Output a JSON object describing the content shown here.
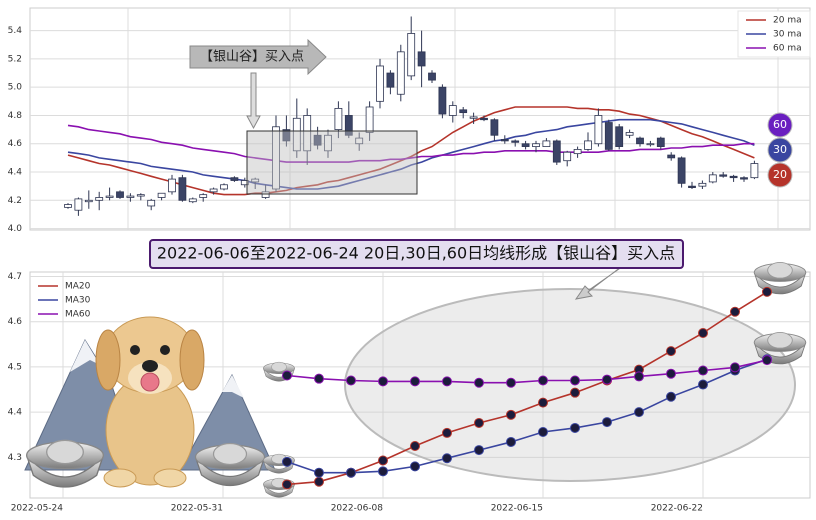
{
  "chart_data": [
    {
      "type": "candlestick",
      "annotation": "【银山谷】买入点",
      "badges": [
        "60",
        "30",
        "20"
      ],
      "ylim": [
        3.99,
        5.56
      ],
      "yticks": [
        {
          "value": 4,
          "label": "4.0"
        },
        4.2,
        4.4,
        4.6,
        4.8,
        {
          "value": 5,
          "label": "5.0"
        },
        5.2,
        5.4
      ],
      "up_color": "#ffffff",
      "down_color": "#3b4466",
      "edge_color": "#2e3552",
      "open": [
        4.15,
        4.13,
        4.19,
        4.2,
        4.22,
        4.26,
        4.22,
        4.23,
        4.16,
        4.22,
        4.26,
        4.36,
        4.19,
        4.22,
        4.26,
        4.28,
        4.36,
        4.31,
        4.33,
        4.22,
        4.28,
        4.7,
        4.55,
        4.55,
        4.66,
        4.55,
        4.7,
        4.8,
        4.6,
        4.68,
        4.9,
        5.1,
        4.95,
        5.08,
        5.25,
        5.1,
        5.0,
        4.8,
        4.84,
        4.78,
        4.78,
        4.77,
        4.63,
        4.62,
        4.6,
        4.58,
        4.58,
        4.62,
        4.48,
        4.53,
        4.56,
        4.6,
        4.75,
        4.72,
        4.66,
        4.64,
        4.6,
        4.64,
        4.52,
        4.5,
        4.3,
        4.3,
        4.33,
        4.38,
        4.37,
        4.36,
        4.36
      ],
      "high": [
        4.18,
        4.22,
        4.27,
        4.26,
        4.29,
        4.27,
        4.25,
        4.25,
        4.21,
        4.25,
        4.38,
        4.38,
        4.22,
        4.25,
        4.29,
        4.32,
        4.37,
        4.36,
        4.36,
        4.31,
        4.8,
        4.8,
        4.92,
        4.85,
        4.72,
        4.7,
        4.9,
        4.9,
        4.68,
        4.9,
        5.2,
        5.12,
        5.3,
        5.5,
        5.4,
        5.12,
        5.02,
        4.9,
        4.86,
        4.82,
        4.8,
        4.78,
        4.66,
        4.63,
        4.62,
        4.62,
        4.64,
        4.63,
        4.55,
        4.58,
        4.68,
        4.85,
        4.77,
        4.74,
        4.7,
        4.65,
        4.62,
        4.65,
        4.54,
        4.51,
        4.33,
        4.34,
        4.4,
        4.4,
        4.38,
        4.37,
        4.48
      ],
      "low": [
        4.14,
        4.09,
        4.14,
        4.13,
        4.2,
        4.21,
        4.19,
        4.2,
        4.13,
        4.2,
        4.24,
        4.19,
        4.18,
        4.19,
        4.24,
        4.27,
        4.33,
        4.29,
        4.28,
        4.21,
        4.26,
        4.58,
        4.5,
        4.45,
        4.56,
        4.5,
        4.64,
        4.64,
        4.55,
        4.62,
        4.85,
        4.95,
        4.9,
        5.05,
        5.0,
        5.03,
        4.78,
        4.75,
        4.78,
        4.74,
        4.76,
        4.62,
        4.6,
        4.58,
        4.56,
        4.54,
        4.58,
        4.45,
        4.44,
        4.5,
        4.55,
        4.58,
        4.55,
        4.56,
        4.64,
        4.58,
        4.58,
        4.56,
        4.48,
        4.29,
        4.28,
        4.28,
        4.32,
        4.36,
        4.33,
        4.33,
        4.35
      ],
      "close": [
        4.17,
        4.21,
        4.2,
        4.22,
        4.23,
        4.22,
        4.23,
        4.24,
        4.2,
        4.25,
        4.35,
        4.2,
        4.21,
        4.24,
        4.28,
        4.31,
        4.34,
        4.34,
        4.35,
        4.26,
        4.72,
        4.62,
        4.78,
        4.8,
        4.59,
        4.66,
        4.85,
        4.66,
        4.64,
        4.86,
        5.15,
        5.0,
        5.25,
        5.38,
        5.15,
        5.05,
        4.81,
        4.87,
        4.82,
        4.79,
        4.77,
        4.66,
        4.62,
        4.61,
        4.58,
        4.6,
        4.62,
        4.47,
        4.54,
        4.56,
        4.62,
        4.8,
        4.56,
        4.58,
        4.68,
        4.6,
        4.6,
        4.58,
        4.5,
        4.32,
        4.29,
        4.32,
        4.38,
        4.37,
        4.36,
        4.35,
        4.46
      ],
      "series": [
        {
          "name": "20 ma",
          "color": "#b5342b",
          "values": [
            4.52,
            4.5,
            4.48,
            4.46,
            4.45,
            4.43,
            4.41,
            4.39,
            4.37,
            4.35,
            4.33,
            4.31,
            4.29,
            4.27,
            4.25,
            4.24,
            4.24,
            4.24,
            4.25,
            4.25,
            4.26,
            4.27,
            4.29,
            4.3,
            4.31,
            4.33,
            4.34,
            4.36,
            4.38,
            4.4,
            4.42,
            4.45,
            4.48,
            4.51,
            4.55,
            4.58,
            4.63,
            4.68,
            4.72,
            4.76,
            4.79,
            4.82,
            4.84,
            4.86,
            4.86,
            4.86,
            4.86,
            4.86,
            4.86,
            4.85,
            4.85,
            4.84,
            4.84,
            4.83,
            4.81,
            4.8,
            4.78,
            4.76,
            4.73,
            4.7,
            4.67,
            4.65,
            4.62,
            4.59,
            4.56,
            4.53,
            4.5
          ]
        },
        {
          "name": "30 ma",
          "color": "#3a46a0",
          "values": [
            4.54,
            4.53,
            4.52,
            4.5,
            4.49,
            4.48,
            4.47,
            4.46,
            4.44,
            4.43,
            4.42,
            4.41,
            4.4,
            4.38,
            4.37,
            4.36,
            4.35,
            4.34,
            4.32,
            4.31,
            4.3,
            4.29,
            4.28,
            4.28,
            4.28,
            4.29,
            4.3,
            4.32,
            4.34,
            4.36,
            4.38,
            4.4,
            4.42,
            4.45,
            4.47,
            4.5,
            4.52,
            4.54,
            4.56,
            4.58,
            4.6,
            4.62,
            4.63,
            4.65,
            4.66,
            4.68,
            4.69,
            4.7,
            4.72,
            4.73,
            4.74,
            4.75,
            4.76,
            4.77,
            4.77,
            4.77,
            4.77,
            4.76,
            4.75,
            4.74,
            4.72,
            4.7,
            4.68,
            4.66,
            4.64,
            4.62,
            4.59
          ]
        },
        {
          "name": "60 ma",
          "color": "#8a10b0",
          "values": [
            4.73,
            4.72,
            4.7,
            4.69,
            4.68,
            4.67,
            4.65,
            4.64,
            4.63,
            4.61,
            4.6,
            4.59,
            4.57,
            4.56,
            4.55,
            4.54,
            4.53,
            4.51,
            4.5,
            4.49,
            4.48,
            4.47,
            4.47,
            4.47,
            4.47,
            4.47,
            4.47,
            4.47,
            4.48,
            4.48,
            4.48,
            4.49,
            4.49,
            4.5,
            4.51,
            4.51,
            4.52,
            4.52,
            4.53,
            4.53,
            4.54,
            4.54,
            4.55,
            4.55,
            4.55,
            4.55,
            4.55,
            4.54,
            4.54,
            4.54,
            4.54,
            4.54,
            4.55,
            4.55,
            4.55,
            4.56,
            4.56,
            4.56,
            4.57,
            4.57,
            4.58,
            4.58,
            4.59,
            4.59,
            4.59,
            4.6,
            4.6
          ]
        }
      ]
    },
    {
      "type": "line",
      "title": "2022-06-06至2022-06-24 20日,30日,60日均线形成【银山谷】买入点",
      "categories": [
        "2022-05-24",
        null,
        null,
        null,
        null,
        "2022-05-31",
        null,
        null,
        null,
        null,
        "2022-06-08",
        null,
        null,
        null,
        null,
        "2022-06-15",
        null,
        null,
        null,
        null,
        "2022-06-22",
        null,
        null
      ],
      "ylim": [
        4.21,
        4.71
      ],
      "yticks": [
        4.3,
        4.4,
        4.5,
        4.6,
        4.7
      ],
      "marker_color": "#1c1c3c",
      "series": [
        {
          "name": "MA20",
          "color": "#b5342b",
          "values": [
            null,
            null,
            null,
            null,
            null,
            null,
            null,
            4.24,
            4.246,
            4.266,
            4.293,
            4.325,
            4.354,
            4.376,
            4.394,
            4.421,
            4.443,
            4.47,
            4.494,
            4.535,
            4.575,
            4.622,
            4.666
          ]
        },
        {
          "name": "MA30",
          "color": "#3a46a0",
          "values": [
            null,
            null,
            null,
            null,
            null,
            null,
            null,
            4.29,
            4.266,
            4.266,
            4.269,
            4.28,
            4.298,
            4.316,
            4.334,
            4.356,
            4.365,
            4.378,
            4.4,
            4.434,
            4.461,
            4.492,
            4.517
          ]
        },
        {
          "name": "MA60",
          "color": "#8a10b0",
          "values": [
            null,
            null,
            null,
            null,
            null,
            null,
            null,
            4.481,
            4.474,
            4.47,
            4.468,
            4.468,
            4.468,
            4.465,
            4.465,
            4.47,
            4.47,
            4.472,
            4.479,
            4.485,
            4.492,
            4.499,
            4.515
          ]
        }
      ]
    }
  ]
}
